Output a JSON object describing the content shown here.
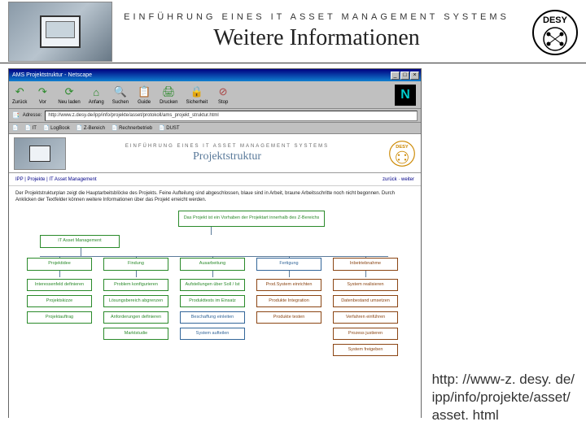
{
  "header": {
    "kicker": "EINFÜHRUNG EINES IT ASSET MANAGEMENT SYSTEMS",
    "title": "Weitere Informationen",
    "logo_text": "DESY"
  },
  "url": {
    "line1": "http: //www-z. desy. de/",
    "line2": "ipp/info/projekte/asset/",
    "line3": "asset. html"
  },
  "browser": {
    "window_title": "AMS Projektstruktur - Netscape",
    "toolbar": [
      {
        "icon": "↶",
        "label": "Zurück",
        "color": "#2a8a2a"
      },
      {
        "icon": "↷",
        "label": "Vor",
        "color": "#2a8a2a"
      },
      {
        "icon": "⟳",
        "label": "Neu laden",
        "color": "#2a8a2a"
      },
      {
        "icon": "⌂",
        "label": "Anfang",
        "color": "#2a8a2a"
      },
      {
        "icon": "🔍",
        "label": "Suchen",
        "color": "#2a8a2a"
      },
      {
        "icon": "📋",
        "label": "Guide",
        "color": "#2a8a2a"
      },
      {
        "icon": "🖨",
        "label": "Drucken",
        "color": "#2a8a2a"
      },
      {
        "icon": "🔒",
        "label": "Sicherheit",
        "color": "#b8a800"
      },
      {
        "icon": "⊘",
        "label": "Stop",
        "color": "#aa4444"
      }
    ],
    "address_label": "Adresse:",
    "address": "http://www.z.desy.de/ipp/info/projekte/asset/protokoll/ams_projekt_struktur.html",
    "bookmarks": [
      "IT",
      "LogBook",
      "Z-Bereich",
      "Rechnerbetrieb",
      "DUST"
    ]
  },
  "page": {
    "kicker": "EINFÜHRUNG EINES IT ASSET MANAGEMENT SYSTEMS",
    "title": "Projektstruktur",
    "crumbs_left": "IPP | Projekte | IT Asset Management",
    "crumbs_right": "zurück · weiter",
    "intro": "Der Projektstrukturplan zeigt die Hauptarbeitsblöcke des Projekts. Feine Aufteilung sind abgeschlossen, blaue sind in Arbeit, braune Arbeitsschritte noch nicht begonnen. Durch Anklicken der Textfelder können weitere Informationen über das Projekt erreicht werden.",
    "root_box": {
      "label": "Das Projekt ist ein Vorhaben\nder Projektart innerhalb des Z-Bereichs",
      "color": "#2a8a2a"
    },
    "project_box": {
      "label": "IT Asset Management",
      "color": "#2a8a2a"
    },
    "phases": [
      {
        "label": "Projektidee",
        "color": "#2a8a2a"
      },
      {
        "label": "Findung",
        "color": "#2a8a2a"
      },
      {
        "label": "Ausarbeitung",
        "color": "#2a8a2a"
      },
      {
        "label": "Fertigung",
        "color": "#336699"
      },
      {
        "label": "Inbetriebnahme",
        "color": "#8b4513"
      }
    ],
    "tasks": {
      "col0": [
        {
          "label": "Interessenfeld definieren",
          "color": "#2a8a2a"
        },
        {
          "label": "Projektskizze",
          "color": "#2a8a2a"
        },
        {
          "label": "Projektauftrag",
          "color": "#2a8a2a"
        }
      ],
      "col1": [
        {
          "label": "Problem konfigurieren",
          "color": "#2a8a2a"
        },
        {
          "label": "Lösungsbereich abgrenzen",
          "color": "#2a8a2a"
        },
        {
          "label": "Anforderungen definieren",
          "color": "#2a8a2a"
        },
        {
          "label": "Marktstudie",
          "color": "#2a8a2a"
        }
      ],
      "col2": [
        {
          "label": "Aufstellungen über Soll / Ist",
          "color": "#2a8a2a"
        },
        {
          "label": "Produkttests im Einsatz",
          "color": "#2a8a2a"
        },
        {
          "label": "Beschaffung einleiten",
          "color": "#336699"
        },
        {
          "label": "System aufteilen",
          "color": "#336699"
        }
      ],
      "col3": [
        {
          "label": "Prod.System einrichten",
          "color": "#8b4513"
        },
        {
          "label": "Produkte Integration",
          "color": "#8b4513"
        },
        {
          "label": "Produkte testen",
          "color": "#8b4513"
        }
      ],
      "col4": [
        {
          "label": "System realisieren",
          "color": "#8b4513"
        },
        {
          "label": "Datenbestand umsetzen",
          "color": "#8b4513"
        },
        {
          "label": "Verfahren einführen",
          "color": "#8b4513"
        },
        {
          "label": "Prozess justieren",
          "color": "#8b4513"
        },
        {
          "label": "System freigeben",
          "color": "#8b4513"
        }
      ]
    }
  },
  "colors": {
    "header_rule": "#333333",
    "page_accent": "#5a7a9a"
  }
}
